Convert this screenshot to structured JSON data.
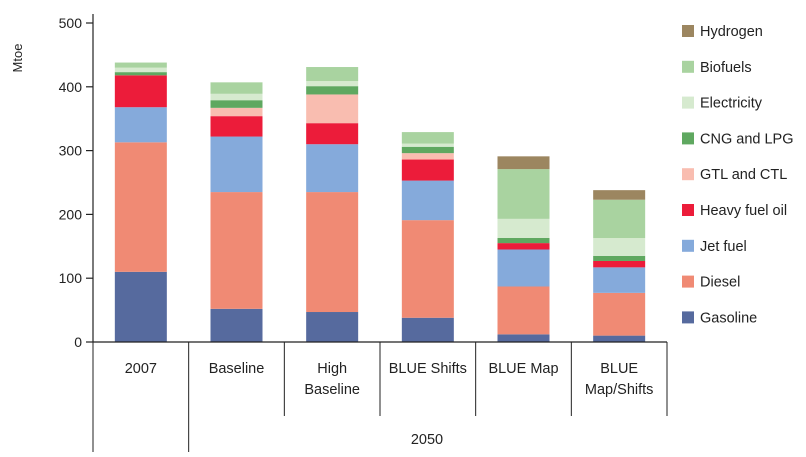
{
  "chart_data": {
    "type": "bar",
    "stacked": true,
    "ylabel": "Mtoe",
    "ylim": [
      0,
      500
    ],
    "yticks": [
      0,
      100,
      200,
      300,
      400,
      500
    ],
    "categories": [
      {
        "lines": [
          "2007"
        ]
      },
      {
        "lines": [
          "Baseline"
        ]
      },
      {
        "lines": [
          "High",
          "Baseline"
        ]
      },
      {
        "lines": [
          "BLUE Shifts"
        ]
      },
      {
        "lines": [
          "BLUE Map"
        ]
      },
      {
        "lines": [
          "BLUE",
          "Map/Shifts"
        ]
      }
    ],
    "group_label": "2050",
    "series": [
      {
        "name": "Gasoline",
        "color": "#566a9e",
        "values": [
          110,
          52,
          47,
          38,
          12,
          10
        ]
      },
      {
        "name": "Diesel",
        "color": "#f08a74",
        "values": [
          203,
          183,
          188,
          153,
          75,
          67
        ]
      },
      {
        "name": "Jet fuel",
        "color": "#85aadb",
        "values": [
          55,
          87,
          75,
          62,
          58,
          40
        ]
      },
      {
        "name": "Heavy fuel oil",
        "color": "#ec1c3a",
        "values": [
          50,
          32,
          33,
          33,
          10,
          10
        ]
      },
      {
        "name": "GTL and CTL",
        "color": "#f9bdb0",
        "values": [
          0,
          13,
          45,
          10,
          0,
          0
        ]
      },
      {
        "name": "CNG and LPG",
        "color": "#5fa860",
        "values": [
          5,
          12,
          13,
          10,
          8,
          8
        ]
      },
      {
        "name": "Electricity",
        "color": "#d6eacf",
        "values": [
          7,
          10,
          8,
          5,
          30,
          28
        ]
      },
      {
        "name": "Biofuels",
        "color": "#a9d3a0",
        "values": [
          8,
          18,
          22,
          18,
          78,
          60
        ]
      },
      {
        "name": "Hydrogen",
        "color": "#9c8660",
        "values": [
          0,
          0,
          0,
          0,
          20,
          15
        ]
      }
    ],
    "legend": {
      "position": "right",
      "order": [
        "Hydrogen",
        "Biofuels",
        "Electricity",
        "CNG and LPG",
        "GTL and CTL",
        "Heavy fuel oil",
        "Jet fuel",
        "Diesel",
        "Gasoline"
      ]
    }
  }
}
